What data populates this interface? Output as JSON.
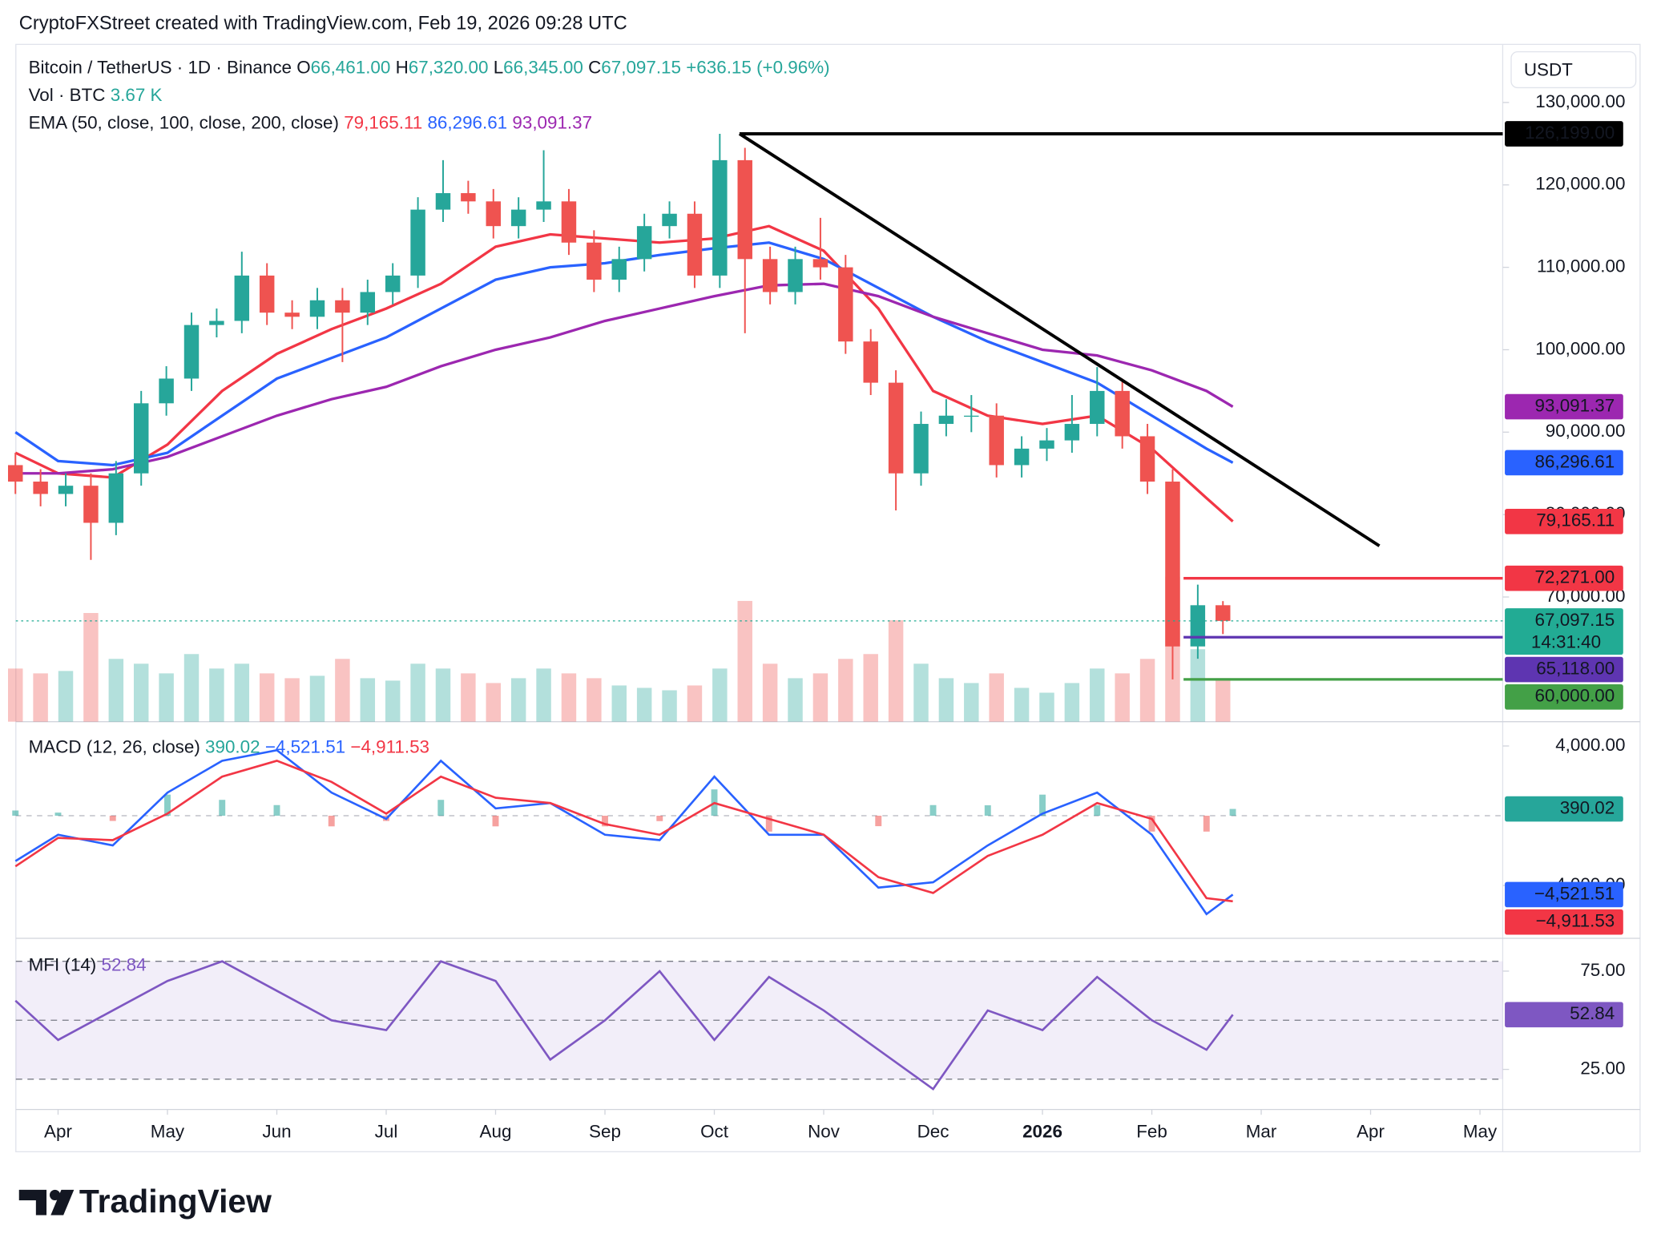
{
  "header": {
    "credit": "CryptoFXStreet created with TradingView.com, Feb 19, 2026 09:28 UTC"
  },
  "footer": {
    "brand": "TradingView"
  },
  "chart_data": [
    {
      "type": "candlestick",
      "symbol": "Bitcoin / TetherUS · 1D · Binance",
      "ohlc_legend": [
        {
          "key": "O",
          "label": "66,461.00"
        },
        {
          "key": "H",
          "label": "67,320.00"
        },
        {
          "key": "L",
          "label": "66,345.00"
        },
        {
          "key": "C",
          "label": "67,097.15"
        }
      ],
      "change": "+636.15 (+0.96%)",
      "volume_legend": {
        "name": "Vol · BTC",
        "label": "3.67 K"
      },
      "currency": "USDT",
      "up_color": "#26a69a",
      "down_color": "#ef5350",
      "xlim": [
        -0.386,
        13.208
      ],
      "xticks": [
        {
          "value": 0,
          "label": "Apr"
        },
        {
          "value": 1,
          "label": "May"
        },
        {
          "value": 2,
          "label": "Jun"
        },
        {
          "value": 3,
          "label": "Jul"
        },
        {
          "value": 4,
          "label": "Aug"
        },
        {
          "value": 5,
          "label": "Sep"
        },
        {
          "value": 6,
          "label": "Oct"
        },
        {
          "value": 7,
          "label": "Nov"
        },
        {
          "value": 8,
          "label": "Dec"
        },
        {
          "value": 9,
          "label": "2026"
        },
        {
          "value": 10,
          "label": "Feb"
        },
        {
          "value": 11,
          "label": "Mar"
        },
        {
          "value": 12,
          "label": "Apr"
        },
        {
          "value": 13,
          "label": "May"
        }
      ],
      "ylim": [
        54870,
        137050
      ],
      "yticks": [
        {
          "value": 130000,
          "label": "130,000.00"
        },
        {
          "value": 120000,
          "label": "120,000.00"
        },
        {
          "value": 110000,
          "label": "110,000.00"
        },
        {
          "value": 100000,
          "label": "100,000.00"
        },
        {
          "value": 90000,
          "label": "90,000.00"
        },
        {
          "value": 80000,
          "label": "80,000.00"
        },
        {
          "value": 70000,
          "label": "70,000.00"
        }
      ],
      "x": [
        -0.39,
        -0.16,
        0.07,
        0.3,
        0.53,
        0.76,
        0.99,
        1.22,
        1.45,
        1.68,
        1.91,
        2.14,
        2.37,
        2.6,
        2.83,
        3.06,
        3.29,
        3.52,
        3.75,
        3.98,
        4.21,
        4.44,
        4.67,
        4.9,
        5.13,
        5.36,
        5.59,
        5.82,
        6.05,
        6.28,
        6.51,
        6.74,
        6.97,
        7.2,
        7.43,
        7.66,
        7.89,
        8.12,
        8.35,
        8.58,
        8.81,
        9.04,
        9.27,
        9.5,
        9.73,
        9.96,
        10.19,
        10.42,
        10.65
      ],
      "open": [
        86000,
        84000,
        82500,
        83500,
        79000,
        85000,
        93500,
        96500,
        103000,
        103500,
        109000,
        104500,
        104000,
        106000,
        104500,
        107000,
        109000,
        117000,
        119000,
        118000,
        115000,
        117000,
        118000,
        113000,
        108500,
        111000,
        115000,
        116500,
        109000,
        123000,
        111000,
        107000,
        111000,
        110000,
        101000,
        96000,
        85000,
        91000,
        92000,
        92000,
        86000,
        88000,
        89000,
        91000,
        95000,
        89500,
        84000,
        64000,
        69000
      ],
      "high": [
        87500,
        85500,
        85000,
        85000,
        86500,
        95000,
        98000,
        104500,
        105000,
        111900,
        110500,
        106000,
        107500,
        107500,
        108500,
        110500,
        118500,
        123000,
        120500,
        119500,
        118500,
        124200,
        119500,
        114500,
        112500,
        116500,
        118000,
        118000,
        126199,
        124500,
        112500,
        112500,
        116000,
        111500,
        102500,
        97500,
        92500,
        94000,
        94500,
        93500,
        89500,
        90500,
        94500,
        97900,
        96500,
        91000,
        85500,
        71500,
        69500
      ],
      "low": [
        82500,
        81000,
        81000,
        74500,
        77500,
        83500,
        92000,
        95000,
        101500,
        102000,
        103000,
        102500,
        102500,
        98500,
        103000,
        105500,
        107500,
        115500,
        116500,
        113500,
        113500,
        115500,
        111500,
        107000,
        107000,
        109500,
        113500,
        107500,
        107500,
        102000,
        105500,
        105500,
        108500,
        99500,
        94500,
        80500,
        83500,
        89500,
        90000,
        84500,
        84500,
        86500,
        87500,
        89500,
        88000,
        82500,
        60000,
        62500,
        65500
      ],
      "close": [
        84000,
        82500,
        83500,
        79000,
        85000,
        93500,
        96500,
        103000,
        103500,
        109000,
        104500,
        104000,
        106000,
        104500,
        107000,
        109000,
        117000,
        119000,
        118000,
        115000,
        117000,
        118000,
        113000,
        108500,
        111000,
        115000,
        116500,
        109000,
        123000,
        111000,
        107000,
        111000,
        110000,
        101000,
        96000,
        85000,
        91000,
        92000,
        92000,
        86000,
        88000,
        89000,
        91000,
        95000,
        89500,
        84000,
        64000,
        69000,
        67097.15
      ],
      "volume_ylim": [
        0,
        70000
      ],
      "volume": [
        22000,
        20000,
        21000,
        45000,
        26000,
        24000,
        20000,
        28000,
        22000,
        24000,
        20000,
        18000,
        19000,
        26000,
        18000,
        17000,
        24000,
        22000,
        20000,
        16000,
        18000,
        22000,
        20000,
        18000,
        15000,
        14000,
        13000,
        15000,
        22000,
        50000,
        24000,
        18000,
        20000,
        26000,
        28000,
        42000,
        24000,
        18000,
        16000,
        20000,
        14000,
        12000,
        16000,
        22000,
        20000,
        26000,
        60000,
        30000,
        18000
      ],
      "ema": {
        "name": "EMA (50, close, 100, close, 200, close)",
        "x": [
          -0.39,
          0,
          0.5,
          1,
          1.5,
          2,
          2.5,
          3,
          3.5,
          4,
          4.5,
          5,
          5.5,
          6,
          6.5,
          7,
          7.5,
          8,
          8.5,
          9,
          9.5,
          10,
          10.5,
          10.74
        ],
        "series": [
          {
            "color": "#f23645",
            "value_label": "79,165.11",
            "values": [
              87500,
              85000,
              84500,
              88500,
              95000,
              99500,
              102500,
              105000,
              108000,
              112500,
              114000,
              113500,
              113000,
              113500,
              115000,
              112000,
              105000,
              95000,
              92000,
              91000,
              92000,
              88000,
              82000,
              79165.11
            ]
          },
          {
            "color": "#2962ff",
            "value_label": "86,296.61",
            "values": [
              90000,
              86500,
              86000,
              87500,
              92000,
              96500,
              99000,
              101500,
              105000,
              108500,
              110000,
              110500,
              111500,
              112300,
              113000,
              111000,
              107500,
              104000,
              101000,
              98500,
              96000,
              92000,
              88000,
              86296.61
            ]
          },
          {
            "color": "#9c27b0",
            "value_label": "93,091.37",
            "values": [
              85000,
              85000,
              85500,
              87000,
              89500,
              92000,
              94000,
              95500,
              98000,
              100000,
              101500,
              103500,
              105000,
              106500,
              107800,
              108000,
              106500,
              104000,
              102000,
              100000,
              99300,
              97500,
              95000,
              93091.37
            ]
          }
        ]
      },
      "trendline": {
        "color": "#000000",
        "x": [
          6.23,
          12.08
        ],
        "values": [
          126199,
          76200
        ]
      },
      "levels": [
        {
          "value": 126199,
          "label": "126,199.00",
          "color": "#000000",
          "x_start": 6.23
        },
        {
          "value": 72271,
          "label": "72,271.00",
          "color": "#f23645",
          "x_start": 10.29
        },
        {
          "value": 65118,
          "label": "65,118.00",
          "color": "#5e35b1",
          "x_start": 10.29
        },
        {
          "value": 60000,
          "label": "60,000.00",
          "color": "#43a047",
          "x_start": 10.29
        }
      ],
      "last_price": {
        "value": 67097.15,
        "label": "67,097.15",
        "countdown": "14:31:40",
        "color": "#22ab94"
      }
    },
    {
      "type": "macd",
      "title": "MACD (12, 26, close)",
      "x": [
        -0.39,
        0,
        0.5,
        1,
        1.5,
        2,
        2.5,
        3,
        3.5,
        4,
        4.5,
        5,
        5.5,
        6,
        6.5,
        7,
        7.5,
        8,
        8.5,
        9,
        9.5,
        10,
        10.5,
        10.74
      ],
      "ylim": [
        -7030,
        5394
      ],
      "yticks": [
        {
          "value": 4000,
          "label": "4,000.00"
        },
        {
          "value": -4000,
          "label": "−4,000.00"
        }
      ],
      "baseline": 0,
      "histogram": {
        "up_color": "#26a69a",
        "down_color": "#ef5350",
        "value_label": "390.02",
        "values": [
          300,
          180,
          -300,
          1210,
          910,
          610,
          -610,
          -300,
          910,
          -610,
          0,
          -610,
          -310,
          1510,
          -910,
          0,
          -600,
          610,
          600,
          1210,
          600,
          -910,
          -910,
          390.02
        ]
      },
      "series": [
        {
          "color": "#2962ff",
          "value_label": "−4,521.51",
          "values": [
            -2600,
            -1090,
            -1700,
            1330,
            3150,
            3760,
            1330,
            -180,
            3150,
            420,
            730,
            -1090,
            -1400,
            2240,
            -1090,
            -1090,
            -4120,
            -3820,
            -1700,
            120,
            1330,
            -1090,
            -5640,
            -4521.51
          ]
        },
        {
          "color": "#f23645",
          "value_label": "−4,911.53",
          "values": [
            -2900,
            -1270,
            -1400,
            120,
            2240,
            3150,
            1940,
            120,
            2240,
            1030,
            730,
            -480,
            -1090,
            730,
            -180,
            -1090,
            -3520,
            -4430,
            -2300,
            -1090,
            730,
            -180,
            -4730,
            -4911.53
          ]
        }
      ]
    },
    {
      "type": "line",
      "title": "MFI (14)",
      "color": "#7e57c2",
      "value_label": "52.84",
      "x": [
        -0.39,
        0,
        0.5,
        1,
        1.5,
        2,
        2.5,
        3,
        3.5,
        4,
        4.5,
        5,
        5.5,
        6,
        6.5,
        7,
        7.5,
        8,
        8.5,
        9,
        9.5,
        10,
        10.5,
        10.74
      ],
      "values": [
        60,
        40,
        55,
        70,
        80,
        65,
        50,
        45,
        80,
        70,
        30,
        50,
        75,
        40,
        72,
        55,
        35,
        15,
        55,
        45,
        72,
        50,
        35,
        52.84
      ],
      "ylim": [
        4.6,
        91.7
      ],
      "yticks": [
        {
          "value": 75,
          "label": "75.00"
        },
        {
          "value": 25,
          "label": "25.00"
        }
      ],
      "bands": [
        80,
        50,
        20
      ]
    }
  ]
}
